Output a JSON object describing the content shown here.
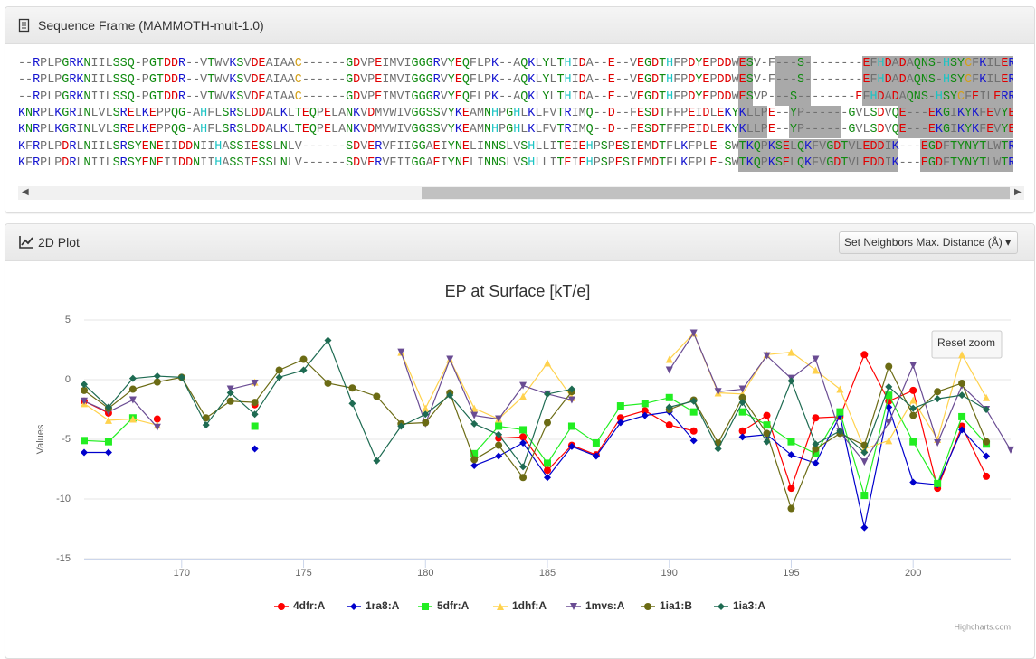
{
  "sequence_frame": {
    "title": "Sequence Frame (MAMMOTH-mult-1.0)",
    "rows": [
      "--RPLPGRKNIILSSQ-PGTDDR--VTWVKSVDEAIAAC------GDVPEIMVIGGGRVYEQFLPK--AQKLYLTHIDA--E--VEGDTHFPDYEPDDWESV-F---S--------EFHDADAQNS-HSYCFKILERR",
      "--RPLPGRKNIILSSQ-PGTDDR--VTWVKSVDEAIAAC------GDVPEIMVIGGGRVYEQFLPK--AQKLYLTHIDA--E--VEGDTHFPDYEPDDWESV-F---S--------EFHDADAQNS-HSYCFKILERR",
      "--RPLPGRKNIILSSQ-PGTDDR--VTWVKSVDEAIAAC------GDVPEIMVIGGGRVYEQFLPK--AQKLYLTHIDA--E--VEGDTHFPDYEPDDWESVP---S--------EFHDADAQNS-HSYCFEILERR",
      "KNRPLKGRINLVLSRELKEPPQG-AHFLSRSLDDALKLTEQPELANKVDMVWIVGGSSVYKEAMNHPGHLKLFVTRIMQ--D--FESDTFFPEIDLEKYKLLPE--YP------GVLSDVQE---EKGIKYKFEVYEKN-",
      "KNRPLKGRINLVLSRELKEPPQG-AHFLSRSLDDALKLTEQPELANKVDMVWIVGGSSVYKEAMNHPGHLKLFVTRIMQ--D--FESDTFFPEIDLEKYKLLPE--YP------GVLSDVQE---EKGIKYKFEVYEKND",
      "KFRPLPDRLNIILSRSYENEIIDDNIIHASSIESSLNLV------SDVERVFIIGGAEIYNELINNSLVSHLLITEIEHPSPESIEMDTFLKFPLE-SWTKQPKSELQKFVGDTVLEDDIK---EGDFTYNYTLWTRK-",
      "KFRPLPDRLNIILSRSYENEIIDDNIIHASSIESSLNLV------SDVERVFIIGGAEIYNELINNSLVSHLLITEIEHPSPESIEMDTFLKFPLE-SWTKQPKSELQKFVGDTVLEDDIK---EGDFTYNYTLWTRK-"
    ]
  },
  "plot_panel": {
    "title": "2D Plot",
    "menu_button": "Set Neighbors Max. Distance (Å)"
  },
  "chart_data": {
    "type": "line",
    "title": "EP at Surface [kT/e]",
    "y_label": "Values",
    "x": [
      166,
      167,
      168,
      169,
      170,
      171,
      172,
      173,
      174,
      175,
      176,
      177,
      178,
      179,
      180,
      181,
      182,
      183,
      184,
      185,
      186,
      187,
      188,
      189,
      190,
      191,
      192,
      193,
      194,
      195,
      196,
      197,
      198,
      199,
      200,
      201,
      202,
      203,
      204
    ],
    "xlim": [
      166,
      204
    ],
    "xticks": [
      170,
      175,
      180,
      185,
      190,
      195,
      200
    ],
    "ylim": [
      -15,
      5
    ],
    "yticks": [
      -15,
      -10,
      -5,
      0,
      5
    ],
    "grid": true,
    "series": [
      {
        "name": "4dfr:A",
        "color": "#ff0000",
        "marker": "circle",
        "values": [
          -1.8,
          -2.8,
          null,
          -3.3,
          null,
          null,
          null,
          -2.1,
          null,
          null,
          null,
          null,
          null,
          null,
          null,
          null,
          null,
          -4.9,
          -4.8,
          -7.6,
          -5.5,
          -6.3,
          -3.2,
          -2.6,
          -3.8,
          -4.3,
          null,
          -4.3,
          -3.0,
          -9.1,
          -3.2,
          -3.1,
          2.1,
          -1.8,
          -0.9,
          -9.1,
          -3.9,
          -8.1,
          null
        ]
      },
      {
        "name": "1ra8:A",
        "color": "#0000cc",
        "marker": "diamond",
        "values": [
          -6.1,
          -6.1,
          null,
          null,
          null,
          null,
          null,
          -5.8,
          null,
          null,
          null,
          null,
          null,
          null,
          null,
          null,
          -7.2,
          -6.4,
          -5.3,
          -8.2,
          -5.6,
          -6.4,
          -3.6,
          -3.0,
          -2.7,
          -5.1,
          null,
          -4.8,
          -4.6,
          -6.3,
          -7.0,
          -3.0,
          -12.4,
          -2.3,
          -8.6,
          -8.8,
          -4.2,
          -6.4,
          null
        ]
      },
      {
        "name": "5dfr:A",
        "color": "#22ee22",
        "marker": "square",
        "values": [
          -5.1,
          -5.2,
          -3.2,
          null,
          null,
          null,
          null,
          -3.9,
          null,
          null,
          null,
          null,
          null,
          null,
          null,
          null,
          -6.2,
          -3.9,
          -4.2,
          -7.0,
          -3.9,
          -5.3,
          -2.2,
          -2.0,
          -1.5,
          -2.7,
          null,
          -2.7,
          -3.8,
          -5.2,
          -6.2,
          -2.7,
          -9.7,
          -1.3,
          -5.2,
          -8.7,
          -3.1,
          -5.4,
          null
        ]
      },
      {
        "name": "1dhf:A",
        "color": "#ffd24d",
        "marker": "triangle",
        "values": [
          -2.0,
          -3.4,
          -3.3,
          -3.8,
          null,
          null,
          null,
          -0.2,
          null,
          null,
          null,
          null,
          null,
          2.3,
          -2.4,
          1.7,
          -2.4,
          -3.3,
          -1.4,
          1.4,
          -1.5,
          null,
          null,
          null,
          1.7,
          3.9,
          -1.1,
          -1.2,
          2.1,
          2.3,
          0.8,
          -0.8,
          -5.8,
          -5.1,
          -1.7,
          -5.0,
          2.1,
          -1.5,
          null
        ]
      },
      {
        "name": "1mvs:A",
        "color": "#6a4c93",
        "marker": "triangle-down",
        "values": [
          -1.8,
          -2.7,
          -1.7,
          -4.0,
          null,
          null,
          -0.8,
          -0.3,
          null,
          null,
          null,
          null,
          null,
          2.3,
          -3.7,
          1.7,
          -3.0,
          -3.3,
          -0.5,
          -1.2,
          -1.7,
          null,
          null,
          null,
          0.8,
          3.9,
          -1.0,
          -0.8,
          2.0,
          0.1,
          1.7,
          -4.4,
          -6.9,
          -3.6,
          1.2,
          -5.3,
          -0.5,
          -2.5,
          -5.9
        ]
      },
      {
        "name": "1ia1:B",
        "color": "#6b6b14",
        "marker": "circle",
        "values": [
          -0.9,
          -2.4,
          -0.8,
          -0.2,
          0.2,
          -3.2,
          -1.8,
          -1.9,
          0.8,
          1.7,
          -0.3,
          -0.7,
          -1.4,
          -3.7,
          -3.6,
          -1.1,
          -6.7,
          -5.5,
          -8.2,
          -3.6,
          -1.0,
          null,
          null,
          null,
          -2.5,
          -1.7,
          -5.3,
          -1.5,
          -4.5,
          -10.8,
          -5.8,
          -4.5,
          -5.5,
          1.1,
          -3.0,
          -1.0,
          -0.3,
          -5.2,
          null
        ]
      },
      {
        "name": "1ia3:A",
        "color": "#1e6b52",
        "marker": "diamond",
        "values": [
          -0.4,
          -2.3,
          0.1,
          0.3,
          0.2,
          -3.8,
          -1.1,
          -2.9,
          0.2,
          0.8,
          3.3,
          -2.0,
          -6.8,
          -3.9,
          -2.9,
          -1.3,
          -3.7,
          -4.6,
          -7.3,
          -1.2,
          -0.8,
          null,
          null,
          null,
          -2.3,
          -1.8,
          -5.8,
          -1.9,
          -5.2,
          -0.1,
          -5.4,
          -4.3,
          -6.1,
          -0.6,
          -2.4,
          -1.6,
          -1.3,
          -2.5,
          null
        ]
      }
    ],
    "reset_button": "Reset zoom",
    "credits": "Highcharts.com"
  }
}
